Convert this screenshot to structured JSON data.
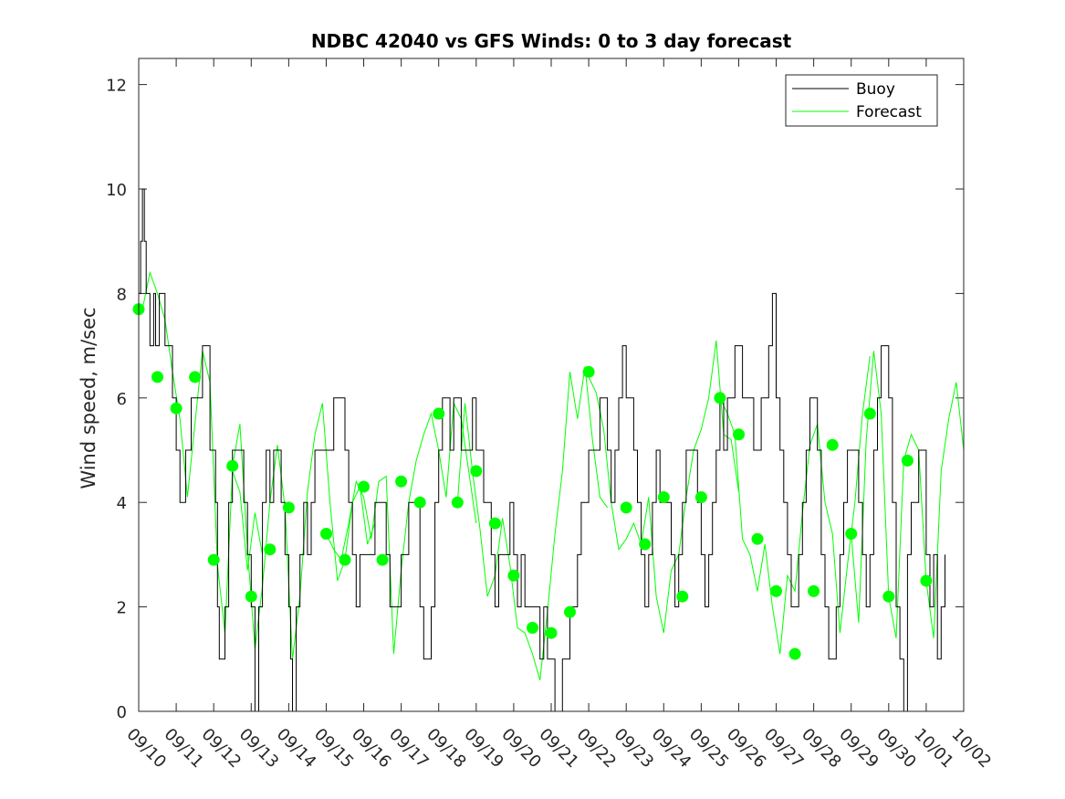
{
  "chart_data": {
    "type": "line",
    "title": "NDBC 42040 vs GFS Winds: 0 to 3 day forecast",
    "xlabel": "",
    "ylabel": "Wind speed, m/sec",
    "ylim": [
      0,
      12.5
    ],
    "yticks": [
      0,
      2,
      4,
      6,
      8,
      10,
      12
    ],
    "xlim": [
      0,
      22
    ],
    "xtick_labels": [
      "09/10",
      "09/11",
      "09/12",
      "09/13",
      "09/14",
      "09/15",
      "09/16",
      "09/17",
      "09/18",
      "09/19",
      "09/20",
      "09/21",
      "09/22",
      "09/23",
      "09/24",
      "09/25",
      "09/26",
      "09/27",
      "09/28",
      "09/29",
      "09/30",
      "10/01",
      "10/02"
    ],
    "legend": {
      "placement": "top-right",
      "entries": [
        "Buoy",
        "Forecast"
      ]
    },
    "colors": {
      "buoy": "#000000",
      "forecast": "#00ff00"
    },
    "series": [
      {
        "name": "Buoy",
        "style": "step",
        "x": [
          0,
          0.05,
          0.1,
          0.15,
          0.2,
          0.25,
          0.3,
          0.35,
          0.4,
          0.45,
          0.5,
          0.55,
          0.6,
          0.7,
          0.8,
          0.9,
          1.0,
          1.1,
          1.2,
          1.25,
          1.3,
          1.4,
          1.5,
          1.6,
          1.7,
          1.8,
          1.9,
          2.0,
          2.05,
          2.1,
          2.15,
          2.2,
          2.3,
          2.4,
          2.5,
          2.6,
          2.7,
          2.8,
          2.9,
          3.0,
          3.1,
          3.2,
          3.3,
          3.4,
          3.5,
          3.6,
          3.7,
          3.8,
          3.9,
          4.0,
          4.05,
          4.1,
          4.2,
          4.3,
          4.4,
          4.5,
          4.6,
          4.7,
          4.8,
          4.9,
          5.0,
          5.1,
          5.2,
          5.3,
          5.4,
          5.5,
          5.6,
          5.7,
          5.8,
          5.9,
          6.0,
          6.1,
          6.2,
          6.3,
          6.4,
          6.5,
          6.6,
          6.7,
          6.8,
          6.9,
          7.0,
          7.1,
          7.2,
          7.3,
          7.4,
          7.5,
          7.6,
          7.7,
          7.8,
          7.9,
          8.0,
          8.1,
          8.2,
          8.3,
          8.4,
          8.5,
          8.6,
          8.7,
          8.8,
          8.9,
          9.0,
          9.1,
          9.2,
          9.3,
          9.4,
          9.5,
          9.6,
          9.7,
          9.8,
          9.9,
          10.0,
          10.1,
          10.2,
          10.3,
          10.4,
          10.5,
          10.6,
          10.7,
          10.8,
          10.9,
          11.0,
          11.1,
          11.2,
          11.3,
          11.4,
          11.5,
          11.6,
          11.7,
          11.8,
          11.9,
          12.0,
          12.1,
          12.2,
          12.3,
          12.4,
          12.5,
          12.6,
          12.7,
          12.8,
          12.9,
          13.0,
          13.1,
          13.2,
          13.3,
          13.4,
          13.5,
          13.6,
          13.7,
          13.8,
          13.9,
          14.0,
          14.1,
          14.2,
          14.3,
          14.4,
          14.5,
          14.6,
          14.7,
          14.8,
          14.9,
          15.0,
          15.1,
          15.2,
          15.3,
          15.4,
          15.5,
          15.6,
          15.7,
          15.8,
          15.9,
          16.0,
          16.1,
          16.2,
          16.3,
          16.4,
          16.5,
          16.6,
          16.7,
          16.8,
          16.9,
          17.0,
          17.1,
          17.2,
          17.3,
          17.4,
          17.5,
          17.6,
          17.7,
          17.8,
          17.9,
          18.0,
          18.1,
          18.2,
          18.3,
          18.4,
          18.5,
          18.6,
          18.7,
          18.8,
          18.9,
          19.0,
          19.1,
          19.2,
          19.3,
          19.4,
          19.5,
          19.6,
          19.7,
          19.8,
          19.9,
          20.0,
          20.1,
          20.2,
          20.3,
          20.4,
          20.5,
          20.6,
          20.7,
          20.8,
          20.9,
          21.0,
          21.1,
          21.2,
          21.3,
          21.4,
          21.5
        ],
        "values": [
          8,
          9,
          10,
          9,
          8,
          8,
          7,
          7,
          8,
          7,
          7,
          8,
          8,
          7,
          7,
          6,
          5,
          4,
          4,
          5,
          5,
          6,
          6,
          6,
          7,
          7,
          5,
          5,
          4,
          2,
          1,
          1,
          2,
          4,
          5,
          5,
          5,
          4,
          3,
          2,
          0,
          2,
          4,
          5,
          4,
          5,
          5,
          4,
          3,
          2,
          1,
          0,
          2,
          3,
          4,
          3,
          4,
          5,
          5,
          5,
          5,
          5,
          6,
          6,
          6,
          5,
          4,
          3,
          2,
          3,
          3,
          3,
          3,
          4,
          4,
          4,
          3,
          2,
          2,
          2,
          3,
          3,
          4,
          4,
          4,
          2,
          1,
          1,
          2,
          4,
          5,
          6,
          6,
          5,
          6,
          6,
          5,
          5,
          5,
          6,
          5,
          5,
          4,
          4,
          3,
          2,
          3,
          3,
          3,
          4,
          3,
          2,
          3,
          2,
          2,
          2,
          2,
          1,
          2,
          1,
          1,
          0,
          0,
          1,
          1,
          2,
          2,
          3,
          4,
          4,
          5,
          5,
          5,
          6,
          6,
          5,
          4,
          5,
          6,
          7,
          6,
          6,
          5,
          4,
          3,
          2,
          3,
          4,
          5,
          4,
          4,
          4,
          3,
          2,
          3,
          4,
          5,
          5,
          5,
          4,
          3,
          2,
          3,
          4,
          5,
          6,
          5,
          6,
          6,
          7,
          7,
          6,
          6,
          6,
          5,
          5,
          6,
          6,
          7,
          8,
          6,
          5,
          4,
          3,
          2,
          2,
          3,
          4,
          5,
          6,
          6,
          5,
          3,
          2,
          1,
          1,
          2,
          3,
          4,
          5,
          5,
          5,
          4,
          3,
          2,
          3,
          5,
          6,
          7,
          7,
          6,
          4,
          2,
          1,
          0,
          3,
          4,
          4,
          5,
          5,
          3,
          2,
          3,
          1,
          2,
          3
        ]
      },
      {
        "name": "Forecast",
        "style": "multi-run",
        "runs": [
          {
            "x": [
              0.1,
              0.3,
              0.5,
              0.7,
              0.9,
              1.1,
              1.3,
              1.5,
              1.7,
              1.9,
              2.1,
              2.3,
              2.5,
              2.7,
              2.9,
              3.1,
              3.3
            ],
            "values": [
              7.7,
              8.4,
              8.0,
              7.5,
              6.5,
              5.6,
              4.1,
              5.5,
              6.9,
              6.3,
              2.8,
              1.5,
              4.6,
              4.2,
              2.7,
              3.8,
              3.0
            ]
          },
          {
            "x": [
              2.5,
              2.7,
              2.9,
              3.1,
              3.3,
              3.5,
              3.7,
              3.9,
              4.1,
              4.3,
              4.5,
              4.7,
              4.9,
              5.1,
              5.3,
              5.5,
              5.7,
              5.9,
              6.1,
              6.3
            ],
            "values": [
              4.7,
              5.5,
              3.1,
              1.2,
              2.4,
              4.0,
              5.1,
              3.9,
              1.0,
              2.2,
              4.2,
              5.3,
              5.9,
              4.0,
              2.5,
              2.9,
              4.0,
              4.3,
              3.2,
              3.6
            ]
          },
          {
            "x": [
              5.0,
              5.2,
              5.4,
              5.6,
              5.8,
              6.0,
              6.2,
              6.4,
              6.6,
              6.8,
              7.0,
              7.2,
              7.4,
              7.6,
              7.8,
              8.0,
              8.2,
              8.4,
              8.6,
              8.8,
              9.0
            ],
            "values": [
              3.4,
              3.1,
              2.9,
              3.6,
              4.4,
              4.1,
              3.3,
              4.4,
              4.5,
              1.1,
              2.7,
              4.0,
              4.8,
              5.3,
              5.7,
              5.0,
              4.1,
              5.9,
              5.6,
              4.6,
              3.6
            ]
          },
          {
            "x": [
              8.5,
              8.7,
              8.9,
              9.1,
              9.3,
              9.5,
              9.7,
              9.9,
              10.1,
              10.3,
              10.5,
              10.7,
              10.9,
              11.1,
              11.3,
              11.5,
              11.7,
              11.9,
              12.1,
              12.3,
              12.5
            ],
            "values": [
              4.0,
              5.9,
              4.6,
              3.5,
              2.2,
              2.6,
              3.7,
              2.8,
              1.6,
              1.5,
              1.1,
              0.6,
              1.9,
              3.4,
              4.6,
              6.5,
              5.6,
              6.6,
              5.2,
              4.1,
              3.9
            ]
          },
          {
            "x": [
              12.0,
              12.2,
              12.4,
              12.6,
              12.8,
              13.0,
              13.2,
              13.4,
              13.6,
              13.8,
              14.0,
              14.2,
              14.4,
              14.6,
              14.8,
              15.0,
              15.2,
              15.4,
              15.6,
              15.8,
              16.0
            ],
            "values": [
              6.4,
              6.1,
              5.4,
              4.0,
              3.1,
              3.3,
              3.6,
              3.2,
              4.1,
              2.2,
              1.5,
              2.7,
              3.0,
              4.1,
              5.0,
              5.4,
              6.0,
              7.1,
              5.3,
              5.2,
              4.2
            ]
          },
          {
            "x": [
              15.5,
              15.7,
              15.9,
              16.1,
              16.3,
              16.5,
              16.7,
              16.9,
              17.1,
              17.3,
              17.5,
              17.7,
              17.9,
              18.1,
              18.3,
              18.5,
              18.7,
              18.9,
              19.1,
              19.3,
              19.5
            ],
            "values": [
              6.0,
              5.7,
              5.3,
              3.3,
              3.0,
              2.3,
              3.2,
              2.0,
              1.1,
              2.6,
              2.3,
              3.8,
              5.1,
              5.5,
              4.0,
              3.4,
              1.5,
              2.8,
              4.0,
              5.7,
              6.8
            ]
          },
          {
            "x": [
              19.0,
              19.2,
              19.4,
              19.6,
              19.8,
              20.0,
              20.2,
              20.4,
              20.6,
              20.8,
              21.0,
              21.2,
              21.4,
              21.6,
              21.8,
              22.0
            ],
            "values": [
              3.4,
              1.7,
              5.2,
              6.9,
              5.7,
              2.2,
              1.4,
              4.8,
              5.3,
              5.0,
              2.5,
              1.4,
              4.6,
              5.6,
              6.3,
              5.0
            ]
          }
        ],
        "markers": {
          "x": [
            0.0,
            0.5,
            1.0,
            1.5,
            2.0,
            2.5,
            3.0,
            3.5,
            4.0,
            5.0,
            5.5,
            6.0,
            6.5,
            7.0,
            7.5,
            8.0,
            8.5,
            9.0,
            9.5,
            10.0,
            10.5,
            11.0,
            11.5,
            12.0,
            13.0,
            13.5,
            14.0,
            14.5,
            15.0,
            15.5,
            16.0,
            16.5,
            17.0,
            17.5,
            18.0,
            18.5,
            19.0,
            19.5,
            20.0,
            20.5,
            21.0
          ],
          "values": [
            7.7,
            6.4,
            5.8,
            6.4,
            2.9,
            4.7,
            2.2,
            3.1,
            3.9,
            3.4,
            2.9,
            4.3,
            2.9,
            4.4,
            4.0,
            5.7,
            4.0,
            4.6,
            3.6,
            2.6,
            1.6,
            1.5,
            1.9,
            6.5,
            3.9,
            3.2,
            4.1,
            2.2,
            4.1,
            6.0,
            5.3,
            3.3,
            2.3,
            1.1,
            2.3,
            5.1,
            3.4,
            5.7,
            2.2,
            4.8,
            2.5
          ]
        }
      }
    ]
  }
}
